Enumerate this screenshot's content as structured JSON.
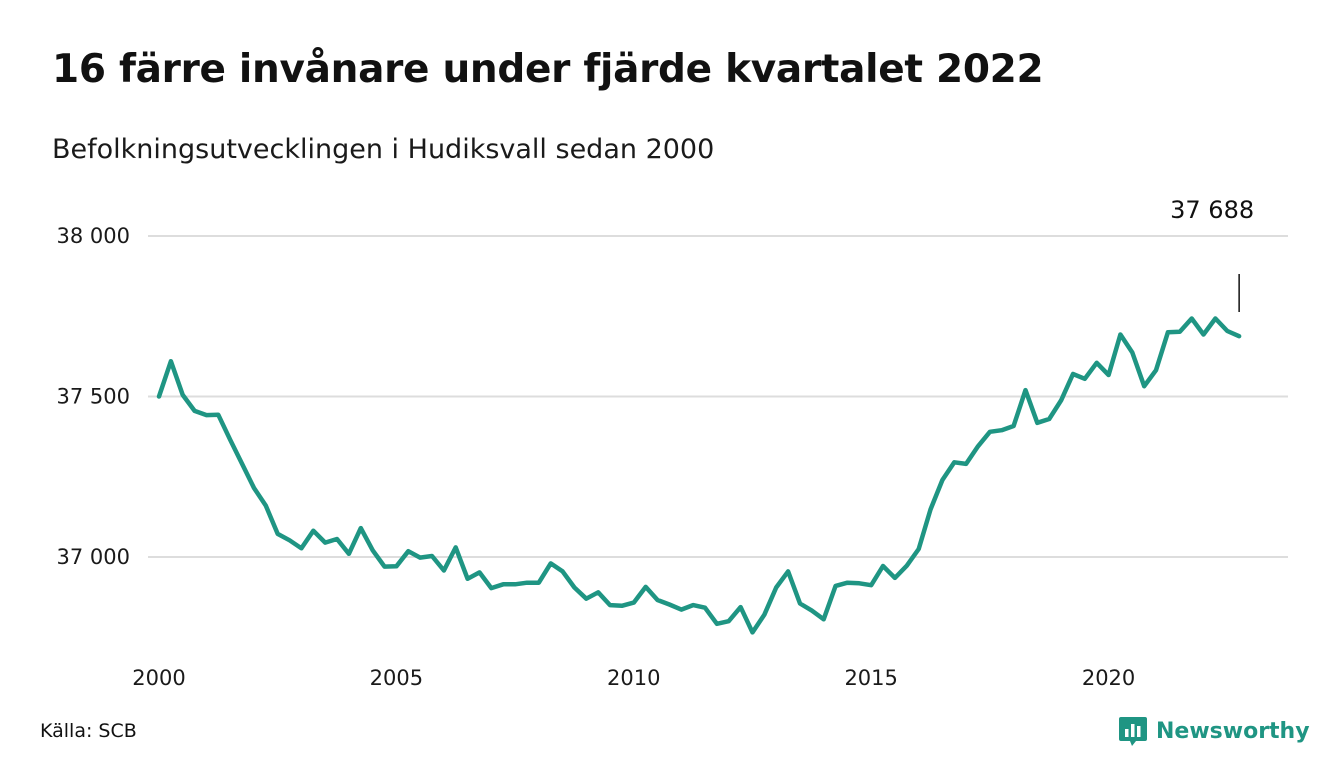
{
  "title": "16 färre invånare under fjärde kvartalet 2022",
  "subtitle": "Befolkningsutvecklingen i Hudiksvall sedan 2000",
  "source": "Källa: SCB",
  "brand": "Newsworthy",
  "colors": {
    "line": "#1f9583",
    "brand": "#1f9583",
    "grid": "#dddddd",
    "text": "#111111"
  },
  "chart_data": {
    "type": "line",
    "title": "16 färre invånare under fjärde kvartalet 2022",
    "subtitle": "Befolkningsutvecklingen i Hudiksvall sedan 2000",
    "xlabel": "",
    "ylabel": "",
    "xlim": [
      2000,
      2023
    ],
    "ylim": [
      36700,
      38000
    ],
    "x_ticks": [
      2000,
      2005,
      2010,
      2015,
      2020
    ],
    "x_tick_labels": [
      "2000",
      "2005",
      "2010",
      "2015",
      "2020"
    ],
    "y_ticks": [
      37000,
      37500,
      38000
    ],
    "y_tick_labels": [
      "37 000",
      "37 500",
      "38 000"
    ],
    "grid": "horizontal",
    "end_label": "37 688",
    "series": [
      {
        "x": [
          2000.0,
          2000.25,
          2000.5,
          2000.75,
          2001.0,
          2001.25,
          2001.5,
          2001.75,
          2002.0,
          2002.25,
          2002.5,
          2002.75,
          2003.0,
          2003.25,
          2003.5,
          2003.75,
          2004.0,
          2004.25,
          2004.5,
          2004.75,
          2005.0,
          2005.25,
          2005.5,
          2005.75,
          2006.0,
          2006.25,
          2006.5,
          2006.75,
          2007.0,
          2007.25,
          2007.5,
          2007.75,
          2008.0,
          2008.25,
          2008.5,
          2008.75,
          2009.0,
          2009.25,
          2009.5,
          2009.75,
          2010.0,
          2010.25,
          2010.5,
          2010.75,
          2011.0,
          2011.25,
          2011.5,
          2011.75,
          2012.0,
          2012.25,
          2012.5,
          2012.75,
          2013.0,
          2013.25,
          2013.5,
          2013.75,
          2014.0,
          2014.25,
          2014.5,
          2014.75,
          2015.0,
          2015.25,
          2015.5,
          2015.75,
          2016.0,
          2016.25,
          2016.5,
          2016.75,
          2017.0,
          2017.25,
          2017.5,
          2017.75,
          2018.0,
          2018.25,
          2018.5,
          2018.75,
          2019.0,
          2019.25,
          2019.5,
          2019.75,
          2020.0,
          2020.25,
          2020.5,
          2020.75,
          2021.0,
          2021.25,
          2021.5,
          2021.75,
          2022.0,
          2022.25,
          2022.5,
          2022.75
        ],
        "values": [
          37500,
          37610,
          37505,
          37455,
          37442,
          37443,
          37365,
          37290,
          37215,
          37160,
          37072,
          37052,
          37027,
          37082,
          37045,
          37056,
          37010,
          37090,
          37021,
          36970,
          36971,
          37018,
          36998,
          37003,
          36958,
          37030,
          36932,
          36952,
          36903,
          36915,
          36915,
          36920,
          36920,
          36980,
          36955,
          36905,
          36870,
          36890,
          36850,
          36848,
          36858,
          36907,
          36866,
          36852,
          36836,
          36850,
          36842,
          36792,
          36800,
          36844,
          36765,
          36820,
          36905,
          36955,
          36855,
          36833,
          36806,
          36910,
          36920,
          36918,
          36912,
          36972,
          36935,
          36973,
          37025,
          37148,
          37240,
          37295,
          37290,
          37345,
          37390,
          37395,
          37408,
          37520,
          37418,
          37430,
          37488,
          37570,
          37555,
          37605,
          37567,
          37693,
          37637,
          37532,
          37582,
          37700,
          37702,
          37743,
          37693,
          37743,
          37704,
          37688
        ]
      }
    ]
  }
}
